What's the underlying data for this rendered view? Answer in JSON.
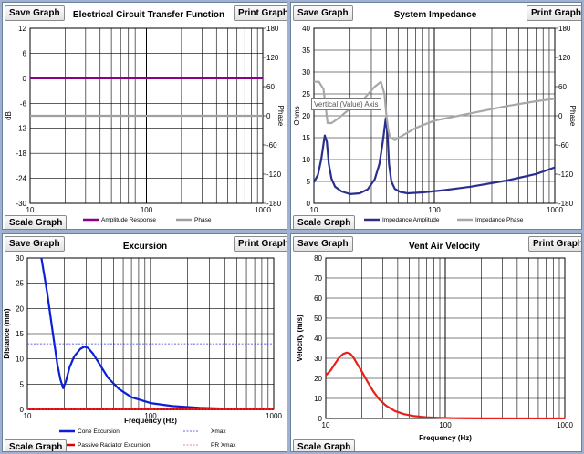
{
  "buttons": {
    "save": "Save Graph",
    "print": "Print Graph",
    "scale": "Scale Graph"
  },
  "tooltip": "Vertical (Value) Axis",
  "charts": [
    {
      "title": "Electrical Circuit Transfer Function",
      "ylabel": "dB",
      "y2label": "Phase",
      "xlabel": "",
      "y_ticks": [
        "12",
        "6",
        "0",
        "-6",
        "-12",
        "-18",
        "-24",
        "-30"
      ],
      "y2_ticks": [
        "180",
        "120",
        "60",
        "0",
        "-60",
        "-120",
        "-180"
      ],
      "x_ticks": [
        "10",
        "100",
        "1000"
      ],
      "legend": [
        "Amplitude Response",
        "Phase"
      ]
    },
    {
      "title": "System Impedance",
      "ylabel": "Ohms",
      "y2label": "Phase",
      "xlabel": "",
      "y_ticks": [
        "40",
        "35",
        "30",
        "25",
        "20",
        "15",
        "10",
        "5",
        "0"
      ],
      "y2_ticks": [
        "180",
        "120",
        "60",
        "0",
        "-60",
        "-120",
        "-180"
      ],
      "x_ticks": [
        "10",
        "100",
        "1000"
      ],
      "legend": [
        "Impedance Amplitude",
        "Impedance Phase"
      ]
    },
    {
      "title": "Excursion",
      "ylabel": "Distance (mm)",
      "xlabel": "Frequency (Hz)",
      "y_ticks": [
        "30",
        "25",
        "20",
        "15",
        "10",
        "5",
        "0"
      ],
      "x_ticks": [
        "10",
        "100",
        "1000"
      ],
      "legend": [
        "Cone Excursion",
        "Xmax",
        "Passive Radiator Excursion",
        "PR Xmax"
      ]
    },
    {
      "title": "Vent Air Velocity",
      "ylabel": "Velocity (m/s)",
      "xlabel": "Frequency (Hz)",
      "y_ticks": [
        "80",
        "70",
        "60",
        "50",
        "40",
        "30",
        "20",
        "10",
        "0"
      ],
      "x_ticks": [
        "10",
        "100",
        "1000"
      ],
      "legend": []
    }
  ],
  "chart_data": [
    {
      "type": "line",
      "title": "Electrical Circuit Transfer Function",
      "xscale": "log",
      "xlim": [
        10,
        1000
      ],
      "ylim": [
        -30,
        12
      ],
      "y2lim": [
        -180,
        180
      ],
      "grid": true,
      "legend_position": "bottom",
      "series": [
        {
          "name": "Amplitude Response",
          "color": "#8b008b",
          "axis": "left",
          "x": [
            10,
            20,
            50,
            100,
            200,
            500,
            1000
          ],
          "y": [
            0,
            0,
            0,
            0,
            0,
            0,
            0
          ]
        },
        {
          "name": "Phase",
          "color": "#a0a0a0",
          "axis": "right",
          "x": [
            10,
            20,
            50,
            100,
            200,
            500,
            1000
          ],
          "y": [
            0,
            0,
            0,
            0,
            0,
            0,
            0
          ]
        }
      ]
    },
    {
      "type": "line",
      "title": "System Impedance",
      "xscale": "log",
      "xlim": [
        10,
        1000
      ],
      "ylim": [
        0,
        40
      ],
      "y2lim": [
        -180,
        180
      ],
      "grid": true,
      "legend_position": "bottom",
      "series": [
        {
          "name": "Impedance Amplitude",
          "color": "#2a2f8f",
          "axis": "left",
          "x": [
            10,
            10.8,
            11.5,
            12.3,
            12.8,
            13.3,
            14,
            15,
            17,
            20,
            24,
            28,
            32,
            35,
            37.5,
            39.5,
            40.8,
            42,
            44,
            47,
            52,
            60,
            80,
            120,
            200,
            400,
            700,
            1000
          ],
          "y": [
            4.8,
            6.5,
            10,
            15.5,
            14,
            9,
            5.6,
            3.8,
            2.7,
            2.1,
            2.3,
            3.2,
            5.5,
            9,
            14.5,
            19.5,
            16,
            9,
            5,
            3.3,
            2.6,
            2.3,
            2.5,
            3,
            3.8,
            5.2,
            6.7,
            8.2
          ]
        },
        {
          "name": "Impedance Phase",
          "color": "#a8a8a8",
          "axis": "right",
          "x": [
            10,
            11,
            12,
            12.5,
            13,
            14,
            16,
            20,
            26,
            32,
            36,
            38.5,
            40,
            41.5,
            43,
            47,
            55,
            70,
            100,
            200,
            400,
            700,
            1000
          ],
          "y": [
            70,
            70,
            55,
            20,
            -15,
            -15,
            -5,
            15,
            35,
            60,
            70,
            45,
            0,
            -30,
            -45,
            -50,
            -40,
            -25,
            -10,
            5,
            20,
            30,
            35
          ]
        }
      ]
    },
    {
      "type": "line",
      "title": "Excursion",
      "xscale": "log",
      "xlim": [
        10,
        1000
      ],
      "ylim": [
        0,
        30
      ],
      "xlabel": "Frequency (Hz)",
      "ylabel": "Distance (mm)",
      "grid": true,
      "legend_position": "bottom",
      "series": [
        {
          "name": "Cone Excursion",
          "color": "#0a1fd8",
          "x": [
            13,
            14.5,
            16,
            17.5,
            18.5,
            19.5,
            20.5,
            22,
            24,
            27,
            29,
            31,
            34,
            38,
            45,
            55,
            70,
            100,
            150,
            250,
            400,
            700,
            1000
          ],
          "y": [
            30,
            23,
            15.5,
            9,
            6,
            4.2,
            5.5,
            8.3,
            10.5,
            12,
            12.4,
            12.2,
            11.1,
            9.2,
            6.3,
            4.1,
            2.4,
            1.25,
            0.65,
            0.3,
            0.15,
            0.05,
            0.02
          ]
        },
        {
          "name": "Xmax",
          "color": "#3a3ad8",
          "style": "dashed",
          "x": [
            10,
            1000
          ],
          "y": [
            13,
            13
          ]
        },
        {
          "name": "Passive Radiator Excursion",
          "color": "#e00000",
          "x": [
            10,
            1000
          ],
          "y": [
            0,
            0
          ]
        },
        {
          "name": "PR Xmax",
          "color": "#e06060",
          "style": "dashed",
          "x": [
            10,
            1000
          ],
          "y": [
            0,
            0
          ]
        }
      ]
    },
    {
      "type": "line",
      "title": "Vent Air Velocity",
      "xscale": "log",
      "xlim": [
        10,
        1000
      ],
      "ylim": [
        0,
        80
      ],
      "xlabel": "Frequency (Hz)",
      "ylabel": "Velocity (m/s)",
      "grid": true,
      "series": [
        {
          "name": "",
          "color": "#e8201c",
          "x": [
            10,
            11,
            12,
            13,
            14,
            15,
            16,
            17,
            18,
            20,
            22,
            25,
            28,
            32,
            38,
            45,
            55,
            70,
            90,
            120,
            200,
            400,
            1000
          ],
          "y": [
            21.5,
            24,
            27.5,
            30.5,
            32.2,
            32.8,
            32.3,
            30.5,
            28,
            23.5,
            19,
            13.5,
            9.5,
            6.3,
            3.7,
            2.2,
            1.2,
            0.6,
            0.3,
            0.15,
            0.05,
            0.01,
            0
          ]
        }
      ]
    }
  ]
}
